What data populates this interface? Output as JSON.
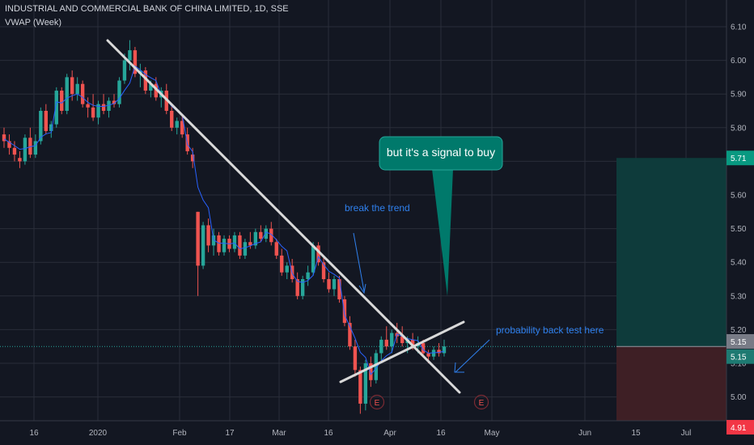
{
  "header": {
    "title": "INDUSTRIAL AND COMMERCIAL BANK OF CHINA LIMITED, 1D, SSE",
    "indicator": "VWAP (Week)"
  },
  "colors": {
    "background": "#131722",
    "grid": "#2a2e39",
    "up": "#26a69a",
    "down": "#ef5350",
    "vwap": "#2962ff",
    "trendline": "#d9d9d9",
    "annotation_text": "#2f80ed",
    "callout_bg": "#00796b",
    "target_zone": "#0e3b3b",
    "stop_zone": "#3e1f25"
  },
  "chart_data": {
    "type": "candlestick",
    "title": "INDUSTRIAL AND COMMERCIAL BANK OF CHINA LIMITED, 1D, SSE",
    "ylim": [
      4.88,
      6.12
    ],
    "y_ticks": [
      "6.10",
      "6.00",
      "5.90",
      "5.80",
      "5.70",
      "5.60",
      "5.50",
      "5.40",
      "5.30",
      "5.20",
      "5.10",
      "5.00"
    ],
    "x_ticks": [
      "16",
      "2020",
      "Feb",
      "17",
      "Mar",
      "16",
      "Apr",
      "16",
      "May",
      "Jun",
      "15",
      "Jul"
    ],
    "price_badges": {
      "target": "5.71",
      "last_price": "5.15",
      "vwap": "5.15",
      "stop": "4.91"
    },
    "trendlines": [
      {
        "name": "downtrend",
        "from": {
          "bar": 0,
          "price": 6.05
        },
        "to": {
          "bar": 1,
          "price": 4.92
        }
      },
      {
        "name": "support",
        "from": {
          "bar": 0,
          "price": 4.94
        },
        "to": {
          "bar": 1,
          "price": 5.15
        }
      }
    ],
    "candles": [
      [
        5.78,
        5.8,
        5.74,
        5.76
      ],
      [
        5.76,
        5.78,
        5.72,
        5.74
      ],
      [
        5.74,
        5.76,
        5.7,
        5.72
      ],
      [
        5.71,
        5.73,
        5.68,
        5.7
      ],
      [
        5.7,
        5.78,
        5.69,
        5.77
      ],
      [
        5.77,
        5.8,
        5.71,
        5.72
      ],
      [
        5.72,
        5.78,
        5.71,
        5.76
      ],
      [
        5.76,
        5.86,
        5.75,
        5.85
      ],
      [
        5.85,
        5.87,
        5.78,
        5.79
      ],
      [
        5.79,
        5.82,
        5.77,
        5.81
      ],
      [
        5.81,
        5.92,
        5.8,
        5.91
      ],
      [
        5.91,
        5.92,
        5.84,
        5.85
      ],
      [
        5.85,
        5.96,
        5.84,
        5.95
      ],
      [
        5.95,
        5.97,
        5.88,
        5.9
      ],
      [
        5.9,
        5.95,
        5.88,
        5.93
      ],
      [
        5.93,
        5.94,
        5.86,
        5.87
      ],
      [
        5.87,
        5.89,
        5.83,
        5.86
      ],
      [
        5.86,
        5.9,
        5.82,
        5.83
      ],
      [
        5.83,
        5.88,
        5.81,
        5.87
      ],
      [
        5.87,
        5.9,
        5.84,
        5.85
      ],
      [
        5.85,
        5.89,
        5.83,
        5.88
      ],
      [
        5.88,
        5.9,
        5.86,
        5.87
      ],
      [
        5.87,
        5.95,
        5.86,
        5.94
      ],
      [
        5.94,
        6.02,
        5.93,
        6.0
      ],
      [
        6.0,
        6.06,
        5.97,
        6.03
      ],
      [
        6.03,
        6.04,
        5.95,
        5.96
      ],
      [
        5.96,
        5.99,
        5.92,
        5.97
      ],
      [
        5.97,
        5.98,
        5.9,
        5.91
      ],
      [
        5.91,
        5.94,
        5.89,
        5.93
      ],
      [
        5.93,
        5.95,
        5.88,
        5.89
      ],
      [
        5.89,
        5.92,
        5.86,
        5.91
      ],
      [
        5.91,
        5.93,
        5.84,
        5.85
      ],
      [
        5.85,
        5.87,
        5.79,
        5.8
      ],
      [
        5.8,
        5.83,
        5.78,
        5.82
      ],
      [
        5.82,
        5.84,
        5.77,
        5.78
      ],
      [
        5.78,
        5.8,
        5.72,
        5.73
      ],
      [
        5.72,
        5.74,
        5.68,
        5.7
      ],
      [
        5.55,
        5.55,
        5.3,
        5.39
      ],
      [
        5.39,
        5.52,
        5.38,
        5.51
      ],
      [
        5.51,
        5.53,
        5.43,
        5.45
      ],
      [
        5.45,
        5.5,
        5.42,
        5.48
      ],
      [
        5.48,
        5.49,
        5.42,
        5.43
      ],
      [
        5.43,
        5.48,
        5.42,
        5.47
      ],
      [
        5.47,
        5.48,
        5.43,
        5.44
      ],
      [
        5.44,
        5.49,
        5.43,
        5.48
      ],
      [
        5.48,
        5.49,
        5.41,
        5.42
      ],
      [
        5.42,
        5.47,
        5.41,
        5.46
      ],
      [
        5.46,
        5.49,
        5.44,
        5.45
      ],
      [
        5.45,
        5.5,
        5.44,
        5.49
      ],
      [
        5.49,
        5.51,
        5.46,
        5.47
      ],
      [
        5.47,
        5.51,
        5.46,
        5.5
      ],
      [
        5.5,
        5.52,
        5.45,
        5.46
      ],
      [
        5.46,
        5.47,
        5.41,
        5.42
      ],
      [
        5.42,
        5.44,
        5.36,
        5.37
      ],
      [
        5.37,
        5.4,
        5.35,
        5.39
      ],
      [
        5.39,
        5.41,
        5.34,
        5.35
      ],
      [
        5.35,
        5.37,
        5.29,
        5.3
      ],
      [
        5.3,
        5.36,
        5.29,
        5.35
      ],
      [
        5.35,
        5.39,
        5.33,
        5.37
      ],
      [
        5.37,
        5.46,
        5.36,
        5.45
      ],
      [
        5.45,
        5.46,
        5.39,
        5.4
      ],
      [
        5.4,
        5.42,
        5.34,
        5.35
      ],
      [
        5.35,
        5.37,
        5.31,
        5.32
      ],
      [
        5.32,
        5.36,
        5.3,
        5.35
      ],
      [
        5.35,
        5.36,
        5.28,
        5.29
      ],
      [
        5.29,
        5.3,
        5.21,
        5.22
      ],
      [
        5.22,
        5.24,
        5.14,
        5.15
      ],
      [
        5.15,
        5.17,
        5.06,
        5.08
      ],
      [
        5.08,
        5.09,
        4.95,
        4.98
      ],
      [
        4.98,
        5.11,
        4.96,
        5.1
      ],
      [
        5.1,
        5.12,
        5.03,
        5.05
      ],
      [
        5.05,
        5.14,
        5.04,
        5.13
      ],
      [
        5.13,
        5.18,
        5.11,
        5.17
      ],
      [
        5.17,
        5.21,
        5.14,
        5.15
      ],
      [
        5.15,
        5.2,
        5.13,
        5.19
      ],
      [
        5.19,
        5.22,
        5.16,
        5.18
      ],
      [
        5.18,
        5.21,
        5.15,
        5.16
      ],
      [
        5.16,
        5.18,
        5.13,
        5.17
      ],
      [
        5.17,
        5.19,
        5.14,
        5.15
      ],
      [
        5.15,
        5.18,
        5.13,
        5.16
      ],
      [
        5.16,
        5.17,
        5.12,
        5.13
      ],
      [
        5.13,
        5.14,
        5.1,
        5.12
      ],
      [
        5.12,
        5.15,
        5.11,
        5.14
      ],
      [
        5.14,
        5.16,
        5.12,
        5.13
      ],
      [
        5.13,
        5.17,
        5.12,
        5.15
      ]
    ]
  },
  "annotations": {
    "callout": "but it's a signal to buy",
    "break_label": "break the trend",
    "backtest_label": "probability back test here",
    "event_marker": "E"
  }
}
